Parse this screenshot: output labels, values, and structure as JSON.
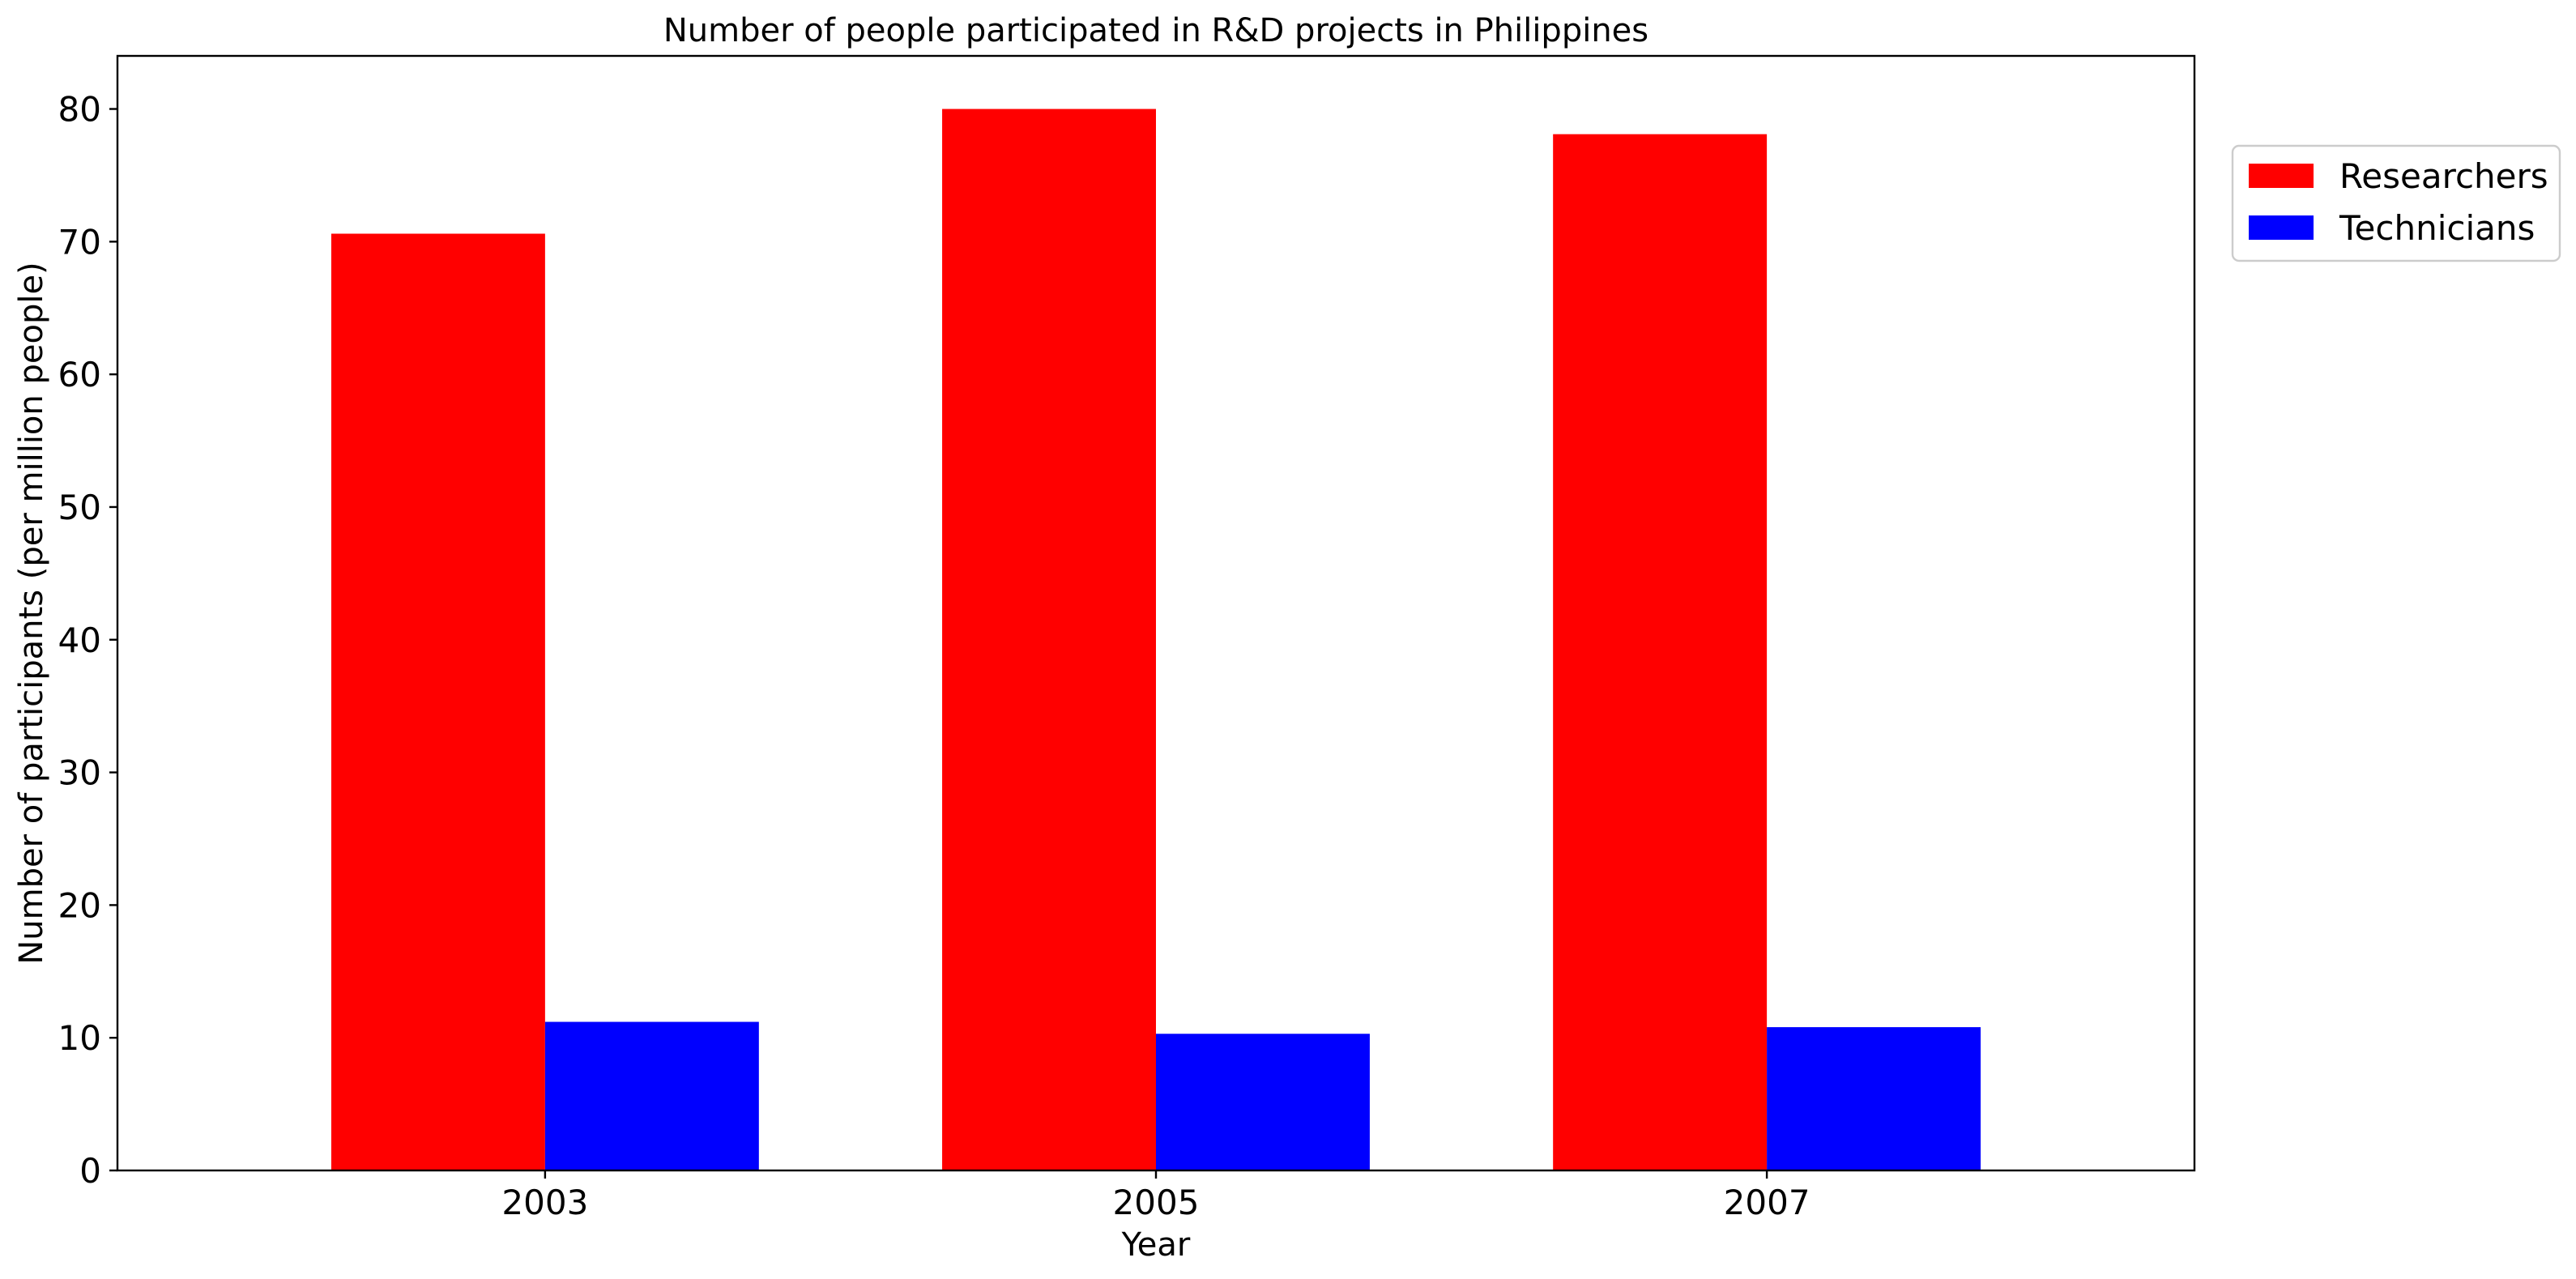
{
  "chart_data": {
    "type": "bar",
    "title": "Number of people participated in R&D projects in Philippines",
    "xlabel": "Year",
    "ylabel": "Number of participants (per million people)",
    "categories": [
      "2003",
      "2005",
      "2007"
    ],
    "series": [
      {
        "name": "Researchers",
        "color": "#ff0000",
        "values": [
          70.6,
          80.0,
          78.1
        ]
      },
      {
        "name": "Technicians",
        "color": "#0000ff",
        "values": [
          11.2,
          10.3,
          10.8
        ]
      }
    ],
    "ylim": [
      0,
      84
    ],
    "yticks": [
      0,
      10,
      20,
      30,
      40,
      50,
      60,
      70,
      80
    ],
    "grid": false,
    "legend_position": "outside-top-right"
  }
}
